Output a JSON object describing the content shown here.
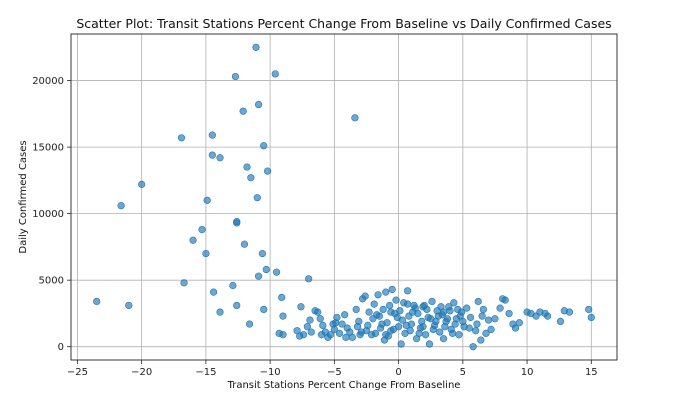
{
  "chart_data": {
    "type": "scatter",
    "title": "Scatter Plot: Transit Stations Percent Change From Baseline vs Daily Confirmed Cases",
    "xlabel": "Transit Stations Percent Change From Baseline",
    "ylabel": "Daily Confirmed Cases",
    "xlim": [
      -25.5,
      17
    ],
    "ylim": [
      -1000,
      23500
    ],
    "xticks": [
      -25,
      -20,
      -15,
      -10,
      -5,
      0,
      5,
      10,
      15
    ],
    "yticks": [
      0,
      5000,
      10000,
      15000,
      20000
    ],
    "grid": true,
    "marker_color": "#1f77b4",
    "points": [
      [
        -23.5,
        3400
      ],
      [
        -21.6,
        10600
      ],
      [
        -21.0,
        3100
      ],
      [
        -20.0,
        12200
      ],
      [
        -16.9,
        15700
      ],
      [
        -16.7,
        4800
      ],
      [
        -16.0,
        8000
      ],
      [
        -15.3,
        8800
      ],
      [
        -15.0,
        7000
      ],
      [
        -14.9,
        11000
      ],
      [
        -14.5,
        15900
      ],
      [
        -14.5,
        14400
      ],
      [
        -14.4,
        4100
      ],
      [
        -13.9,
        14200
      ],
      [
        -13.9,
        2600
      ],
      [
        -12.9,
        4600
      ],
      [
        -12.7,
        20300
      ],
      [
        -12.6,
        9400
      ],
      [
        -12.6,
        9300
      ],
      [
        -12.6,
        3100
      ],
      [
        -12.1,
        17700
      ],
      [
        -12.0,
        7700
      ],
      [
        -11.8,
        13500
      ],
      [
        -11.6,
        1700
      ],
      [
        -11.5,
        12700
      ],
      [
        -11.1,
        22500
      ],
      [
        -11.0,
        11200
      ],
      [
        -10.9,
        18200
      ],
      [
        -10.9,
        5300
      ],
      [
        -10.6,
        7000
      ],
      [
        -10.5,
        15100
      ],
      [
        -10.5,
        2800
      ],
      [
        -10.3,
        5800
      ],
      [
        -10.2,
        13200
      ],
      [
        -9.6,
        20500
      ],
      [
        -9.5,
        5600
      ],
      [
        -9.3,
        1000
      ],
      [
        -9.1,
        3700
      ],
      [
        -9.0,
        900
      ],
      [
        -9.0,
        2300
      ],
      [
        -7.9,
        1200
      ],
      [
        -7.7,
        800
      ],
      [
        -7.6,
        3000
      ],
      [
        -7.4,
        900
      ],
      [
        -7.1,
        1500
      ],
      [
        -7.0,
        5100
      ],
      [
        -6.9,
        2000
      ],
      [
        -6.5,
        2700
      ],
      [
        -6.3,
        2600
      ],
      [
        -6.1,
        2100
      ],
      [
        -5.9,
        1600
      ],
      [
        -5.7,
        1100
      ],
      [
        -5.3,
        900
      ],
      [
        -5.0,
        1300
      ],
      [
        -4.8,
        2200
      ],
      [
        -4.6,
        1000
      ],
      [
        -4.4,
        1700
      ],
      [
        -4.2,
        2400
      ],
      [
        -4.0,
        1400
      ],
      [
        -3.8,
        1100
      ],
      [
        -3.4,
        17200
      ],
      [
        -3.3,
        2800
      ],
      [
        -3.1,
        1900
      ],
      [
        -3.0,
        900
      ],
      [
        -2.8,
        3600
      ],
      [
        -2.6,
        3800
      ],
      [
        -2.4,
        1600
      ],
      [
        -2.3,
        2600
      ],
      [
        -2.1,
        900
      ],
      [
        -1.9,
        3200
      ],
      [
        -1.7,
        2400
      ],
      [
        -1.6,
        3900
      ],
      [
        -1.4,
        1400
      ],
      [
        -1.2,
        2800
      ],
      [
        -1.1,
        500
      ],
      [
        -1.0,
        4100
      ],
      [
        -0.9,
        1800
      ],
      [
        -0.7,
        3100
      ],
      [
        -0.6,
        1200
      ],
      [
        -0.5,
        4300
      ],
      [
        -0.3,
        2500
      ],
      [
        -0.2,
        3500
      ],
      [
        0.0,
        1500
      ],
      [
        0.1,
        2700
      ],
      [
        0.2,
        200
      ],
      [
        0.4,
        3300
      ],
      [
        0.5,
        1000
      ],
      [
        0.7,
        4200
      ],
      [
        0.8,
        2300
      ],
      [
        1.0,
        1700
      ],
      [
        1.2,
        3100
      ],
      [
        1.4,
        600
      ],
      [
        1.5,
        2500
      ],
      [
        1.7,
        1400
      ],
      [
        1.9,
        3000
      ],
      [
        2.1,
        900
      ],
      [
        2.3,
        2200
      ],
      [
        2.4,
        200
      ],
      [
        2.6,
        3400
      ],
      [
        2.8,
        1600
      ],
      [
        3.0,
        2700
      ],
      [
        3.2,
        1100
      ],
      [
        3.4,
        2400
      ],
      [
        3.5,
        600
      ],
      [
        3.7,
        1900
      ],
      [
        3.9,
        3000
      ],
      [
        4.1,
        1300
      ],
      [
        4.3,
        3300
      ],
      [
        4.5,
        2100
      ],
      [
        4.7,
        900
      ],
      [
        4.9,
        2600
      ],
      [
        5.1,
        1500
      ],
      [
        5.3,
        2900
      ],
      [
        5.6,
        2200
      ],
      [
        5.8,
        0
      ],
      [
        6.0,
        1200
      ],
      [
        6.2,
        3400
      ],
      [
        6.4,
        500
      ],
      [
        6.6,
        2800
      ],
      [
        6.8,
        1000
      ],
      [
        7.0,
        2000
      ],
      [
        7.2,
        1300
      ],
      [
        7.9,
        2900
      ],
      [
        8.1,
        3600
      ],
      [
        8.3,
        3500
      ],
      [
        8.6,
        2500
      ],
      [
        8.9,
        1700
      ],
      [
        9.1,
        1400
      ],
      [
        9.4,
        1800
      ],
      [
        10.0,
        2600
      ],
      [
        10.3,
        2500
      ],
      [
        10.7,
        2300
      ],
      [
        11.0,
        2600
      ],
      [
        11.4,
        2500
      ],
      [
        11.6,
        2300
      ],
      [
        12.6,
        1900
      ],
      [
        12.9,
        2700
      ],
      [
        13.3,
        2600
      ],
      [
        14.8,
        2800
      ],
      [
        15.0,
        2200
      ],
      [
        -6.8,
        1100
      ],
      [
        -5.5,
        700
      ],
      [
        -4.9,
        1800
      ],
      [
        -3.6,
        700
      ],
      [
        -2.9,
        1100
      ],
      [
        -1.8,
        1000
      ],
      [
        -1.3,
        1700
      ],
      [
        -0.8,
        800
      ],
      [
        -0.4,
        1300
      ],
      [
        0.3,
        2000
      ],
      [
        0.9,
        1200
      ],
      [
        1.3,
        2900
      ],
      [
        1.8,
        1900
      ],
      [
        2.2,
        2800
      ],
      [
        2.7,
        1300
      ],
      [
        3.1,
        2300
      ],
      [
        3.6,
        1500
      ],
      [
        4.0,
        2700
      ],
      [
        4.4,
        1700
      ],
      [
        4.8,
        2300
      ],
      [
        5.5,
        1400
      ],
      [
        6.5,
        2300
      ],
      [
        -3.2,
        1500
      ],
      [
        -2.0,
        2100
      ],
      [
        -0.1,
        2200
      ],
      [
        1.1,
        2600
      ],
      [
        2.5,
        2100
      ],
      [
        3.8,
        2100
      ],
      [
        -4.1,
        700
      ],
      [
        -1.5,
        2300
      ],
      [
        0.6,
        1600
      ],
      [
        1.6,
        1000
      ],
      [
        2.9,
        1900
      ],
      [
        4.2,
        1000
      ],
      [
        5.0,
        1900
      ],
      [
        6.1,
        1700
      ],
      [
        -5.1,
        1700
      ],
      [
        -2.5,
        1200
      ],
      [
        -0.6,
        2600
      ],
      [
        0.7,
        3200
      ],
      [
        2.0,
        3100
      ],
      [
        3.3,
        3000
      ],
      [
        4.6,
        2800
      ],
      [
        -6.0,
        900
      ],
      [
        -1.0,
        900
      ],
      [
        1.9,
        1500
      ],
      [
        3.5,
        2600
      ],
      [
        7.5,
        2100
      ]
    ]
  }
}
